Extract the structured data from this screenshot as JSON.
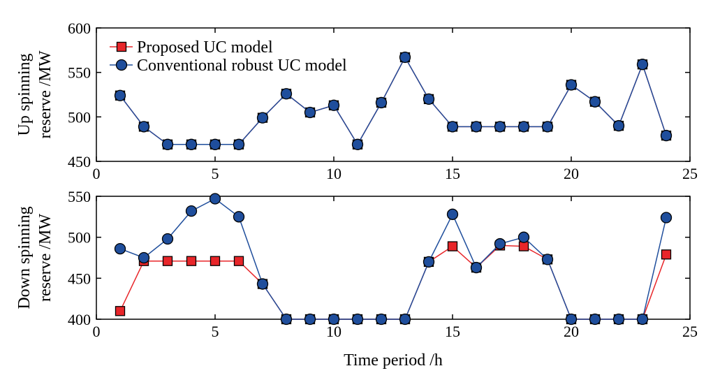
{
  "chart_data": [
    {
      "type": "line",
      "ylabel_lines": [
        "Up spinning",
        "reserve /MW"
      ],
      "xlabel": "",
      "xlim": [
        0,
        25
      ],
      "ylim": [
        450,
        600
      ],
      "xticks": [
        0,
        5,
        10,
        15,
        20,
        25
      ],
      "yticks": [
        450,
        500,
        550,
        600
      ],
      "grid": false,
      "legend_position": "top-left",
      "x": [
        1,
        2,
        3,
        4,
        5,
        6,
        7,
        8,
        9,
        10,
        11,
        12,
        13,
        14,
        15,
        16,
        17,
        18,
        19,
        20,
        21,
        22,
        23,
        24
      ],
      "series": [
        {
          "name": "Proposed UC model",
          "marker": "square",
          "color": "#e8262a",
          "values": [
            524,
            489,
            469,
            469,
            469,
            469,
            499,
            526,
            505,
            513,
            469,
            516,
            567,
            520,
            489,
            489,
            489,
            489,
            489,
            536,
            517,
            490,
            559,
            479
          ]
        },
        {
          "name": "Conventional robust UC model",
          "marker": "circle",
          "color": "#1f4e9c",
          "values": [
            524,
            489,
            469,
            469,
            469,
            469,
            499,
            526,
            505,
            513,
            469,
            516,
            567,
            520,
            489,
            489,
            489,
            489,
            489,
            536,
            517,
            490,
            559,
            479
          ]
        }
      ]
    },
    {
      "type": "line",
      "ylabel_lines": [
        "Down spinning",
        "reserve /MW"
      ],
      "xlabel": "Time period /h",
      "xlim": [
        0,
        25
      ],
      "ylim": [
        400,
        550
      ],
      "xticks": [
        0,
        5,
        10,
        15,
        20,
        25
      ],
      "yticks": [
        400,
        450,
        500,
        550
      ],
      "grid": false,
      "x": [
        1,
        2,
        3,
        4,
        5,
        6,
        7,
        8,
        9,
        10,
        11,
        12,
        13,
        14,
        15,
        16,
        17,
        18,
        19,
        20,
        21,
        22,
        23,
        24
      ],
      "series": [
        {
          "name": "Proposed UC model",
          "marker": "square",
          "color": "#e8262a",
          "values": [
            410,
            471,
            471,
            471,
            471,
            471,
            443,
            400,
            400,
            400,
            400,
            400,
            400,
            470,
            489,
            463,
            490,
            489,
            473,
            400,
            400,
            400,
            400,
            479
          ]
        },
        {
          "name": "Conventional robust UC model",
          "marker": "circle",
          "color": "#1f4e9c",
          "values": [
            486,
            475,
            498,
            532,
            547,
            525,
            443,
            400,
            400,
            400,
            400,
            400,
            400,
            470,
            528,
            463,
            492,
            500,
            473,
            400,
            400,
            400,
            400,
            524
          ]
        }
      ]
    }
  ]
}
